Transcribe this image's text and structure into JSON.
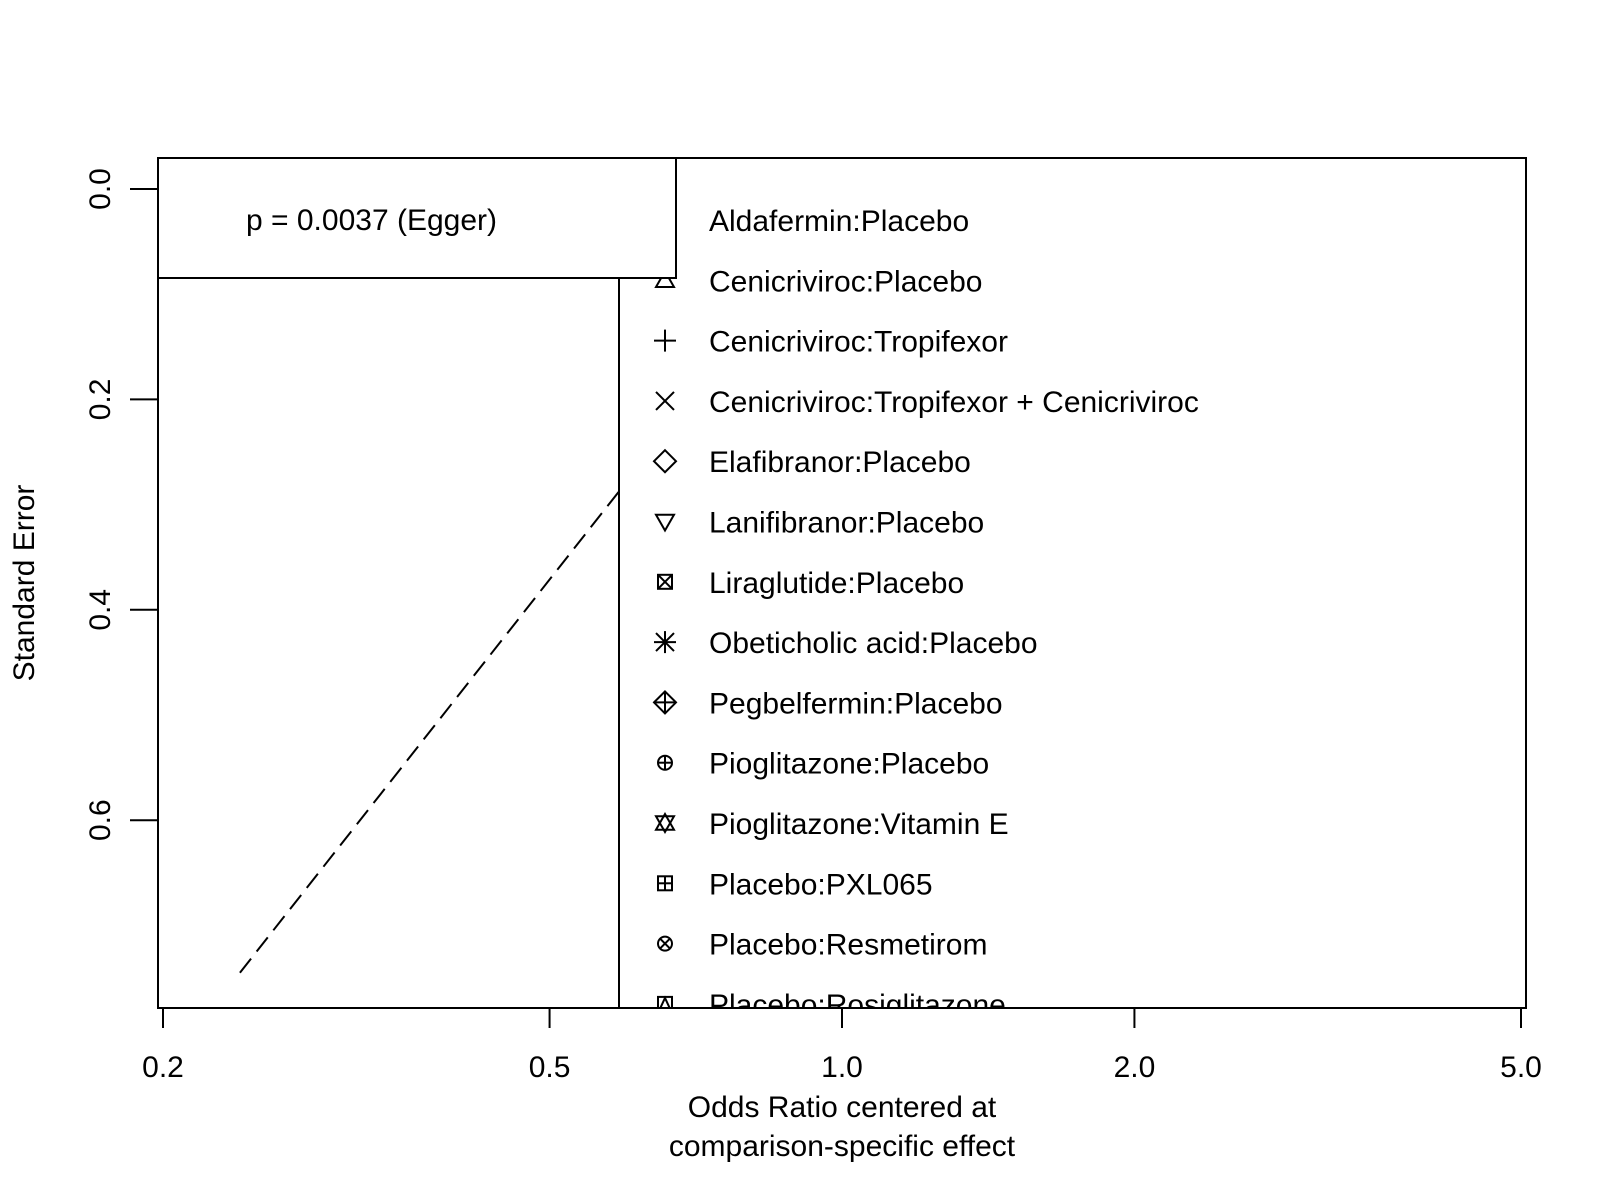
{
  "chart_data": {
    "type": "scatter",
    "title": "",
    "xlabel_lines": [
      "Odds Ratio centered at",
      "comparison-specific effect"
    ],
    "ylabel": "Standard Error",
    "x_scale": "log",
    "xlim": [
      0.2,
      5.0
    ],
    "ylim_reversed": [
      0.0,
      0.775
    ],
    "x_ticks": [
      {
        "value": 0.2,
        "label": "0.2"
      },
      {
        "value": 0.5,
        "label": "0.5"
      },
      {
        "value": 1.0,
        "label": "1.0"
      },
      {
        "value": 2.0,
        "label": "2.0"
      },
      {
        "value": 5.0,
        "label": "5.0"
      }
    ],
    "y_ticks": [
      {
        "value": 0.0,
        "label": "0.0"
      },
      {
        "value": 0.2,
        "label": "0.2"
      },
      {
        "value": 0.4,
        "label": "0.4"
      },
      {
        "value": 0.6,
        "label": "0.6"
      }
    ],
    "egger_line": {
      "x": [
        0.24,
        0.61
      ],
      "y": [
        0.745,
        0.27
      ]
    },
    "annotation": "p = 0.0037 (Egger)",
    "legend_placement": "top-center",
    "legend": [
      {
        "label": "Aldafermin:Placebo",
        "symbol": "circle"
      },
      {
        "label": "Cenicriviroc:Placebo",
        "symbol": "triangle-up"
      },
      {
        "label": "Cenicriviroc:Tropifexor",
        "symbol": "plus"
      },
      {
        "label": "Cenicriviroc:Tropifexor + Cenicriviroc",
        "symbol": "cross"
      },
      {
        "label": "Elafibranor:Placebo",
        "symbol": "diamond"
      },
      {
        "label": "Lanifibranor:Placebo",
        "symbol": "triangle-down"
      },
      {
        "label": "Liraglutide:Placebo",
        "symbol": "square-cross"
      },
      {
        "label": "Obeticholic acid:Placebo",
        "symbol": "asterisk"
      },
      {
        "label": "Pegbelfermin:Placebo",
        "symbol": "diamond-plus"
      },
      {
        "label": "Pioglitazone:Placebo",
        "symbol": "circle-plus"
      },
      {
        "label": "Pioglitazone:Vitamin E",
        "symbol": "star-of-david"
      },
      {
        "label": "Placebo:PXL065",
        "symbol": "square-plus"
      },
      {
        "label": "Placebo:Resmetirom",
        "symbol": "circle-cross"
      },
      {
        "label": "Placebo:Rosiglitazone",
        "symbol": "square-triangle"
      }
    ]
  }
}
